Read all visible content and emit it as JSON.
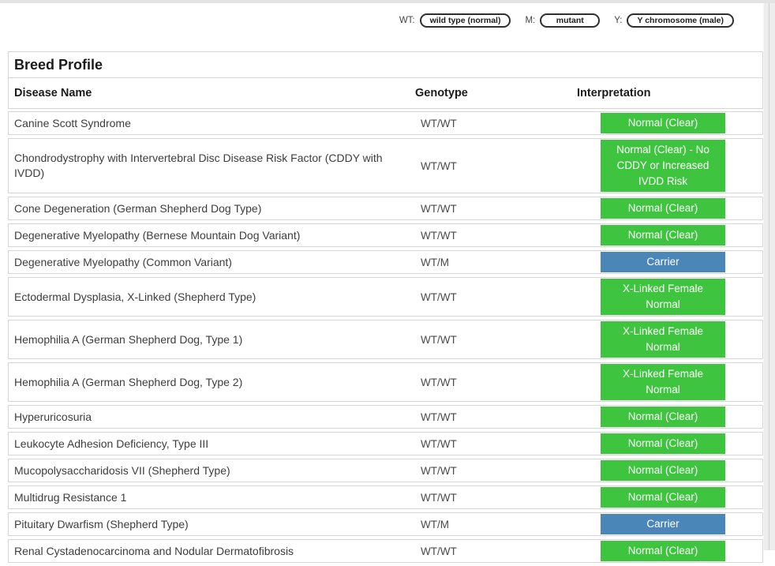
{
  "legend": {
    "items": [
      {
        "abbr": "WT:",
        "label": "wild type (normal)"
      },
      {
        "abbr": "M:",
        "label": "mutant"
      },
      {
        "abbr": "Y:",
        "label": "Y chromosome (male)"
      }
    ]
  },
  "panel": {
    "title": "Breed Profile",
    "columns": {
      "disease": "Disease Name",
      "genotype": "Genotype",
      "interpretation": "Interpretation"
    }
  },
  "rows": [
    {
      "disease": "Canine Scott Syndrome",
      "genotype": "WT/WT",
      "interpretation": "Normal (Clear)",
      "status": "normal"
    },
    {
      "disease": "Chondrodystrophy with Intervertebral Disc Disease Risk Factor (CDDY with IVDD)",
      "genotype": "WT/WT",
      "interpretation": "Normal (Clear) - No CDDY or Increased IVDD Risk",
      "status": "normal"
    },
    {
      "disease": "Cone Degeneration (German Shepherd Dog Type)",
      "genotype": "WT/WT",
      "interpretation": "Normal (Clear)",
      "status": "normal"
    },
    {
      "disease": "Degenerative Myelopathy (Bernese Mountain Dog Variant)",
      "genotype": "WT/WT",
      "interpretation": "Normal (Clear)",
      "status": "normal"
    },
    {
      "disease": "Degenerative Myelopathy (Common Variant)",
      "genotype": "WT/M",
      "interpretation": "Carrier",
      "status": "carrier"
    },
    {
      "disease": "Ectodermal Dysplasia, X-Linked (Shepherd Type)",
      "genotype": "WT/WT",
      "interpretation": "X-Linked Female Normal",
      "status": "normal"
    },
    {
      "disease": "Hemophilia A (German Shepherd Dog, Type 1)",
      "genotype": "WT/WT",
      "interpretation": "X-Linked Female Normal",
      "status": "normal"
    },
    {
      "disease": "Hemophilia A (German Shepherd Dog, Type 2)",
      "genotype": "WT/WT",
      "interpretation": "X-Linked Female Normal",
      "status": "normal"
    },
    {
      "disease": "Hyperuricosuria",
      "genotype": "WT/WT",
      "interpretation": "Normal (Clear)",
      "status": "normal"
    },
    {
      "disease": "Leukocyte Adhesion Deficiency, Type III",
      "genotype": "WT/WT",
      "interpretation": "Normal (Clear)",
      "status": "normal"
    },
    {
      "disease": "Mucopolysaccharidosis VII (Shepherd Type)",
      "genotype": "WT/WT",
      "interpretation": "Normal (Clear)",
      "status": "normal"
    },
    {
      "disease": "Multidrug Resistance 1",
      "genotype": "WT/WT",
      "interpretation": "Normal (Clear)",
      "status": "normal"
    },
    {
      "disease": "Pituitary Dwarfism (Shepherd Type)",
      "genotype": "WT/M",
      "interpretation": "Carrier",
      "status": "carrier"
    },
    {
      "disease": "Renal Cystadenocarcinoma and Nodular Dermatofibrosis",
      "genotype": "WT/WT",
      "interpretation": "Normal (Clear)",
      "status": "normal"
    }
  ],
  "colors": {
    "normal": "#3fc43f",
    "carrier": "#4a87b8"
  }
}
